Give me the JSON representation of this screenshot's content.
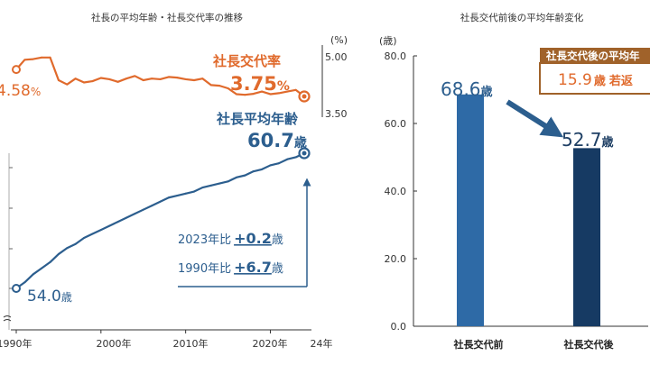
{
  "left_title": "社長の平均年齢・社長交代率の推移",
  "right_title": "社長交代前後の平均年齢変化",
  "left": {
    "pct_unit": "(%)",
    "pct_ticks": [
      "5.00",
      "3.50"
    ],
    "age_ticks": [
      "",
      "",
      "",
      ""
    ],
    "x_ticks": [
      "1990年",
      "2000年",
      "2010年",
      "2020年",
      "24年"
    ],
    "rate_label": "社長交代率",
    "rate_start_text": "4.58",
    "rate_start_unit": "%",
    "rate_end_text": "3.75",
    "rate_end_unit": "%",
    "age_label": "社長平均年齢",
    "age_end_text": "60.7",
    "age_end_unit": "歳",
    "age_start_text": "54.0",
    "age_start_unit": "歳",
    "cmp2023_prefix": "2023年比",
    "cmp2023_value": "+0.2",
    "cmp2023_unit": "歳",
    "cmp1990_prefix": "1990年比",
    "cmp1990_value": "+6.7",
    "cmp1990_unit": "歳"
  },
  "right": {
    "y_unit": "(歳)",
    "y_ticks": [
      "80.0",
      "60.0",
      "40.0",
      "20.0",
      "0.0"
    ],
    "bar1_label": "68.6",
    "bar1_unit": "歳",
    "bar2_label": "52.7",
    "bar2_unit": "歳",
    "callout_title": "社長交代後の平均年",
    "callout_value": "15.9",
    "callout_unit": "歳",
    "callout_suffix": "若返"
  },
  "colors": {
    "orange": "#e06a2c",
    "blue": "#2c5e8e",
    "blue_bar": "#2e6aa6",
    "navy_bar": "#163a63",
    "callout_title_bg": "#a0622a"
  },
  "chart_data": [
    {
      "type": "line",
      "title": "社長の平均年齢・社長交代率の推移",
      "x": [
        1990,
        1991,
        1992,
        1993,
        1994,
        1995,
        1996,
        1997,
        1998,
        1999,
        2000,
        2001,
        2002,
        2003,
        2004,
        2005,
        2006,
        2007,
        2008,
        2009,
        2010,
        2011,
        2012,
        2013,
        2014,
        2015,
        2016,
        2017,
        2018,
        2019,
        2020,
        2021,
        2022,
        2023,
        2024
      ],
      "series": [
        {
          "name": "社長交代率",
          "axis": "right",
          "unit": "%",
          "values": [
            4.58,
            4.88,
            4.9,
            4.95,
            4.95,
            4.25,
            4.12,
            4.3,
            4.18,
            4.22,
            4.32,
            4.28,
            4.2,
            4.3,
            4.38,
            4.25,
            4.3,
            4.28,
            4.35,
            4.33,
            4.28,
            4.25,
            4.3,
            4.1,
            4.08,
            4.0,
            3.82,
            3.8,
            3.83,
            3.9,
            3.82,
            3.85,
            3.9,
            3.95,
            3.75
          ]
        },
        {
          "name": "社長平均年齢",
          "axis": "left",
          "unit": "歳",
          "values": [
            54.0,
            54.3,
            54.7,
            55.0,
            55.3,
            55.7,
            56.0,
            56.2,
            56.5,
            56.7,
            56.9,
            57.1,
            57.3,
            57.5,
            57.7,
            57.9,
            58.1,
            58.3,
            58.5,
            58.6,
            58.7,
            58.8,
            59.0,
            59.1,
            59.2,
            59.3,
            59.5,
            59.6,
            59.8,
            59.9,
            60.1,
            60.2,
            60.4,
            60.5,
            60.7
          ]
        }
      ],
      "xlabel": "",
      "ylabel": ""
    },
    {
      "type": "bar",
      "title": "社長交代前後の平均年齢変化",
      "categories": [
        "社長交代前",
        "社長交代後"
      ],
      "values": [
        68.6,
        52.7
      ],
      "ylabel": "(歳)",
      "ylim": [
        0,
        80
      ]
    }
  ]
}
